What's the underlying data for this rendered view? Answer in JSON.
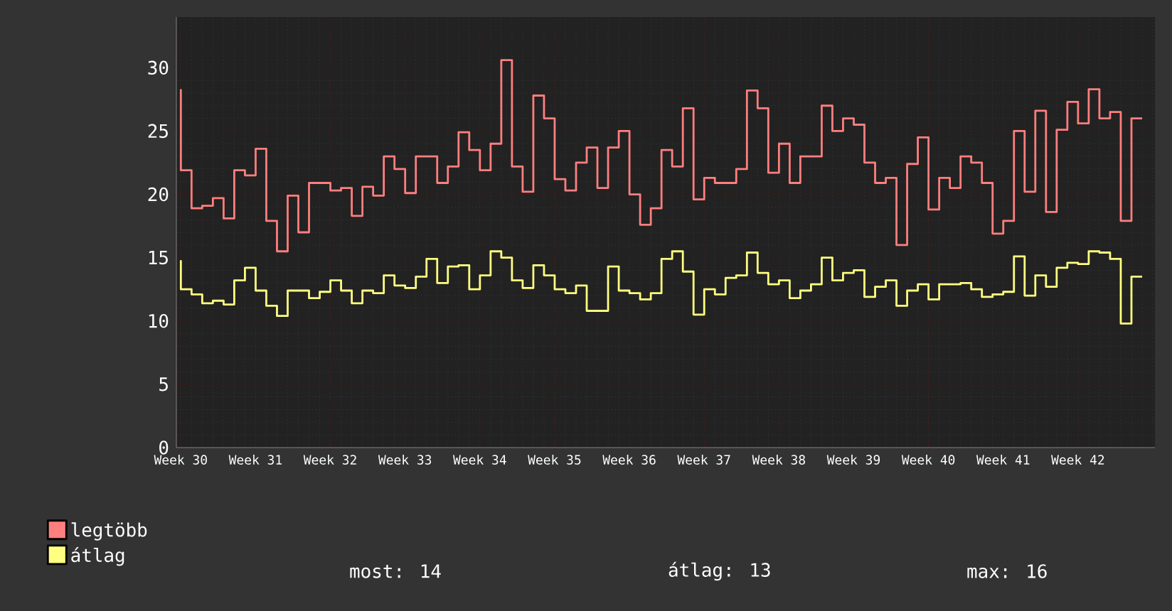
{
  "chart_data": {
    "type": "step",
    "categories": [
      "Week 30",
      null,
      null,
      null,
      null,
      null,
      null,
      "Week 31",
      null,
      null,
      null,
      null,
      null,
      null,
      "Week 32",
      null,
      null,
      null,
      null,
      null,
      null,
      "Week 33",
      null,
      null,
      null,
      null,
      null,
      null,
      "Week 34",
      null,
      null,
      null,
      null,
      null,
      null,
      "Week 35",
      null,
      null,
      null,
      null,
      null,
      null,
      "Week 36",
      null,
      null,
      null,
      null,
      null,
      null,
      "Week 37",
      null,
      null,
      null,
      null,
      null,
      null,
      "Week 38",
      null,
      null,
      null,
      null,
      null,
      null,
      "Week 39",
      null,
      null,
      null,
      null,
      null,
      null,
      "Week 40",
      null,
      null,
      null,
      null,
      null,
      null,
      "Week 41",
      null,
      null,
      null,
      null,
      null,
      null,
      "Week 42",
      null,
      null,
      null,
      null,
      null,
      null
    ],
    "series": [
      {
        "name": "legtöbb",
        "color": "#ff7f7f",
        "values": [
          28.3,
          21.9,
          18.9,
          19.1,
          19.7,
          18.1,
          21.9,
          21.5,
          23.6,
          17.9,
          15.5,
          19.9,
          17.0,
          20.9,
          20.9,
          20.3,
          20.5,
          18.3,
          20.6,
          19.9,
          23.0,
          22.0,
          20.1,
          23.0,
          23.0,
          20.9,
          22.2,
          24.9,
          23.5,
          21.9,
          24.0,
          30.6,
          22.2,
          20.2,
          27.8,
          26.0,
          21.2,
          20.3,
          22.5,
          23.7,
          20.5,
          23.7,
          25.0,
          20.0,
          17.6,
          18.9,
          23.5,
          22.2,
          26.8,
          19.6,
          21.3,
          20.9,
          20.9,
          22.0,
          28.2,
          26.8,
          21.7,
          24.0,
          20.9,
          23.0,
          23.0,
          27.0,
          25.0,
          26.0,
          25.5,
          22.5,
          20.9,
          21.3,
          16.0,
          22.4,
          24.5,
          18.8,
          21.3,
          20.5,
          23.0,
          22.5,
          20.9,
          16.9,
          17.9,
          25.0,
          20.2,
          26.6,
          18.6,
          25.1,
          27.3,
          25.6,
          28.3,
          26.0,
          26.5,
          17.9,
          26.0
        ]
      },
      {
        "name": "átlag",
        "color": "#ffff80",
        "values": [
          14.8,
          12.5,
          12.1,
          11.4,
          11.6,
          11.3,
          13.2,
          14.2,
          12.4,
          11.2,
          10.4,
          12.4,
          12.4,
          11.8,
          12.3,
          13.2,
          12.4,
          11.4,
          12.4,
          12.2,
          13.6,
          12.8,
          12.6,
          13.5,
          14.9,
          13.0,
          14.3,
          14.4,
          12.5,
          13.6,
          15.5,
          15.0,
          13.2,
          12.6,
          14.4,
          13.6,
          12.5,
          12.2,
          12.8,
          10.8,
          10.8,
          14.3,
          12.4,
          12.2,
          11.7,
          12.2,
          14.9,
          15.5,
          13.9,
          10.5,
          12.5,
          12.1,
          13.4,
          13.6,
          15.4,
          13.8,
          12.9,
          13.2,
          11.8,
          12.4,
          12.9,
          15.0,
          13.2,
          13.8,
          14.0,
          11.9,
          12.7,
          13.2,
          11.2,
          12.4,
          12.9,
          11.7,
          12.9,
          12.9,
          13.0,
          12.5,
          11.9,
          12.1,
          12.3,
          15.1,
          12.0,
          13.6,
          12.7,
          14.2,
          14.6,
          14.5,
          15.5,
          15.4,
          14.9,
          9.8,
          13.5
        ]
      }
    ],
    "ylim": [
      0,
      34
    ],
    "yticks": [
      0,
      5,
      10,
      15,
      20,
      25,
      30
    ],
    "grid": true,
    "legend": "bottom left",
    "marker": "none",
    "line_style": "solid",
    "annotations": [
      "most: 14",
      "átlag: 13",
      "max: 16"
    ]
  }
}
